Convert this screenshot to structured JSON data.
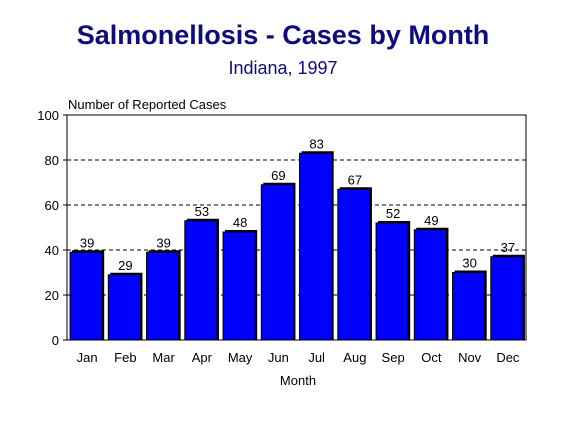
{
  "chart_data": {
    "type": "bar",
    "title": "Salmonellosis - Cases by Month",
    "subtitle": "Indiana, 1997",
    "ylabel": "Number of Reported Cases",
    "xlabel": "Month",
    "categories": [
      "Jan",
      "Feb",
      "Mar",
      "Apr",
      "May",
      "Jun",
      "Jul",
      "Aug",
      "Sep",
      "Oct",
      "Nov",
      "Dec"
    ],
    "values": [
      39,
      29,
      39,
      53,
      48,
      69,
      83,
      67,
      52,
      49,
      30,
      37
    ],
    "ylim": [
      0,
      100
    ],
    "yticks": [
      "0",
      "20",
      "40",
      "60",
      "80",
      "100"
    ],
    "grid": "dashed horizontal",
    "bar_color": "#0000ff"
  }
}
